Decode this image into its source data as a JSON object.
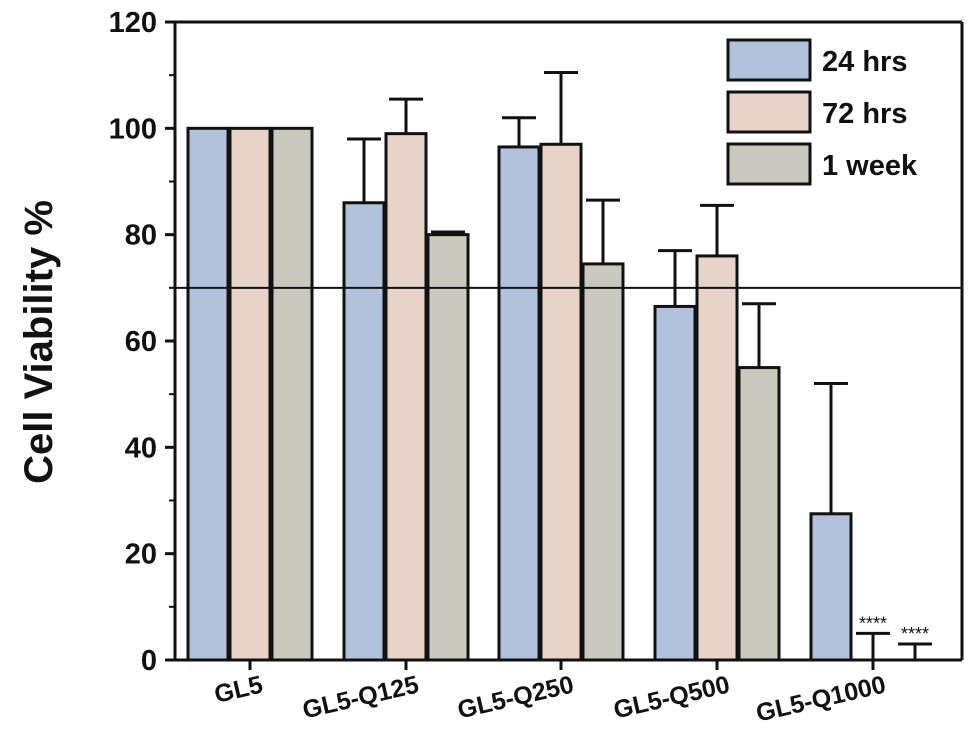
{
  "chart_data": {
    "type": "bar",
    "title": "",
    "xlabel": "",
    "ylabel": "Cell Viability %",
    "ylim": [
      0,
      120
    ],
    "yticks": [
      0,
      20,
      40,
      60,
      80,
      100,
      120
    ],
    "grid": false,
    "legend_position": "top-right",
    "categories": [
      "GL5",
      "GL5-Q125",
      "GL5-Q250",
      "GL5-Q500",
      "GL5-Q1000"
    ],
    "series": [
      {
        "name": "24 hrs",
        "color": "#b3c2dc",
        "values": [
          100,
          86,
          96.5,
          66.5,
          27.5
        ],
        "error": [
          0,
          12,
          5.5,
          10.5,
          24.5
        ]
      },
      {
        "name": "72 hrs",
        "color": "#e8d3cb",
        "values": [
          100,
          99,
          97,
          76,
          0
        ],
        "error": [
          0,
          6.5,
          13.5,
          9.5,
          5
        ]
      },
      {
        "name": "1 week",
        "color": "#cac9be",
        "values": [
          100,
          80,
          74.5,
          55,
          0
        ],
        "error": [
          0,
          0.5,
          12,
          12,
          3
        ]
      }
    ],
    "reference_line": 70,
    "annotations": [
      {
        "text": "****",
        "series": "72 hrs",
        "category": "GL5-Q1000"
      },
      {
        "text": "****",
        "series": "1 week",
        "category": "GL5-Q1000"
      }
    ]
  }
}
